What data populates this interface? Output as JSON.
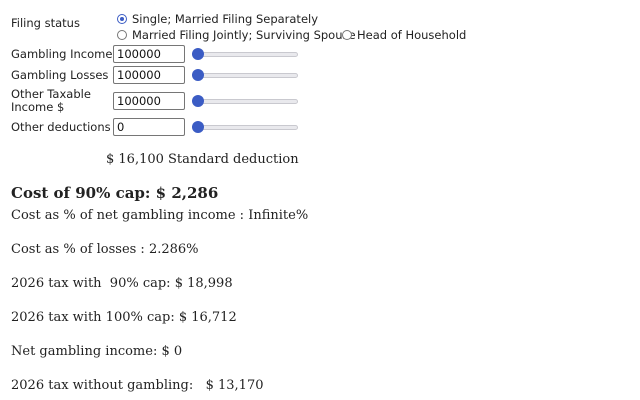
{
  "filing": {
    "label": "Filing status",
    "options": [
      {
        "label": "Single; Married Filing Separately",
        "selected": true
      },
      {
        "label": "Married Filing Jointly; Surviving Spouse",
        "selected": false
      },
      {
        "label": "Head of Household",
        "selected": false
      }
    ]
  },
  "inputs": [
    {
      "label": "Gambling Income $",
      "value": "100000",
      "slider_fraction": 0
    },
    {
      "label": "Gambling Losses $",
      "value": "100000",
      "slider_fraction": 0
    },
    {
      "label_line1": "Other Taxable",
      "label_line2": "Income $",
      "value": "100000",
      "slider_fraction": 0
    },
    {
      "label": "Other deductions $",
      "value": "0",
      "slider_fraction": 0
    }
  ],
  "results": {
    "standard_deduction": "$ 16,100 Standard deduction",
    "cost_90_cap": "Cost of 90% cap: $ 2,286",
    "cost_pct_net": "Cost as % of net gambling income : Infinite%",
    "cost_pct_losses": "Cost as % of losses : 2.286%",
    "tax_90_cap": "2026 tax with  90% cap: $ 18,998",
    "tax_100_cap": "2026 tax with 100% cap: $ 16,712",
    "net_gambling": "Net gambling income: $ 0",
    "tax_without": "2026 tax without gambling:   $ 13,170"
  },
  "colors": {
    "accent": "#3b5cc4"
  }
}
